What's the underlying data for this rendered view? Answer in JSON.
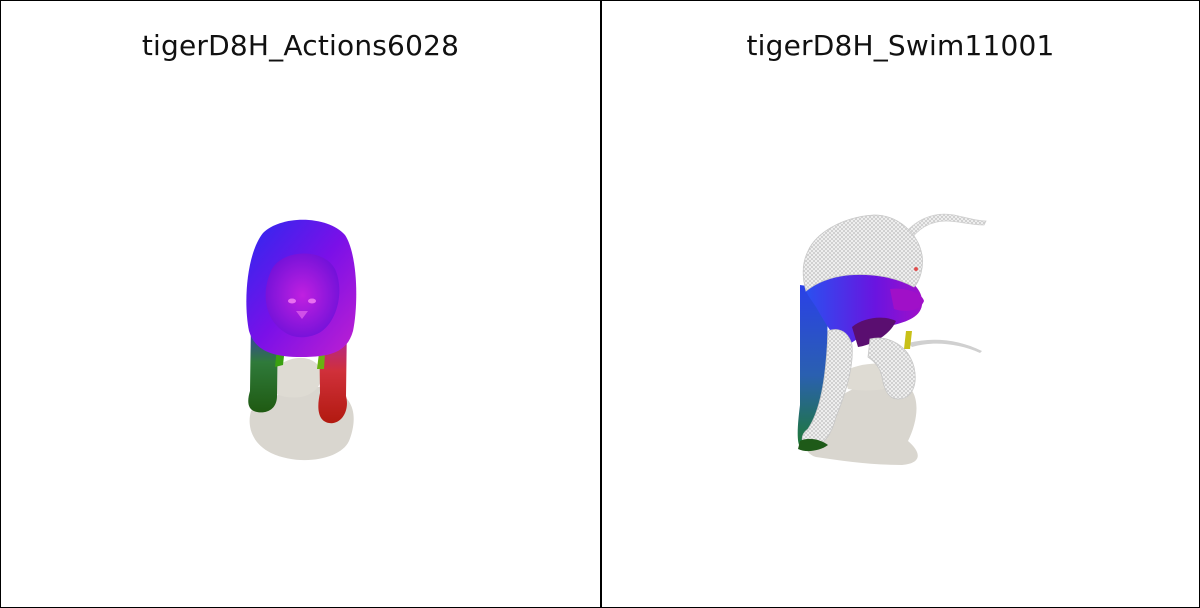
{
  "panels": [
    {
      "title": "tigerD8H_Actions6028"
    },
    {
      "title": "tigerD8H_Swim11001"
    }
  ],
  "colors": {
    "background": "#ffffff",
    "border": "#000000",
    "shadow": "#d9d6cf",
    "body_purple": "#8a12e6",
    "body_blue": "#3a1df0",
    "leg_green": "#2f8a22",
    "leg_red": "#e0301c",
    "wireframe": "#d8d8d8"
  }
}
